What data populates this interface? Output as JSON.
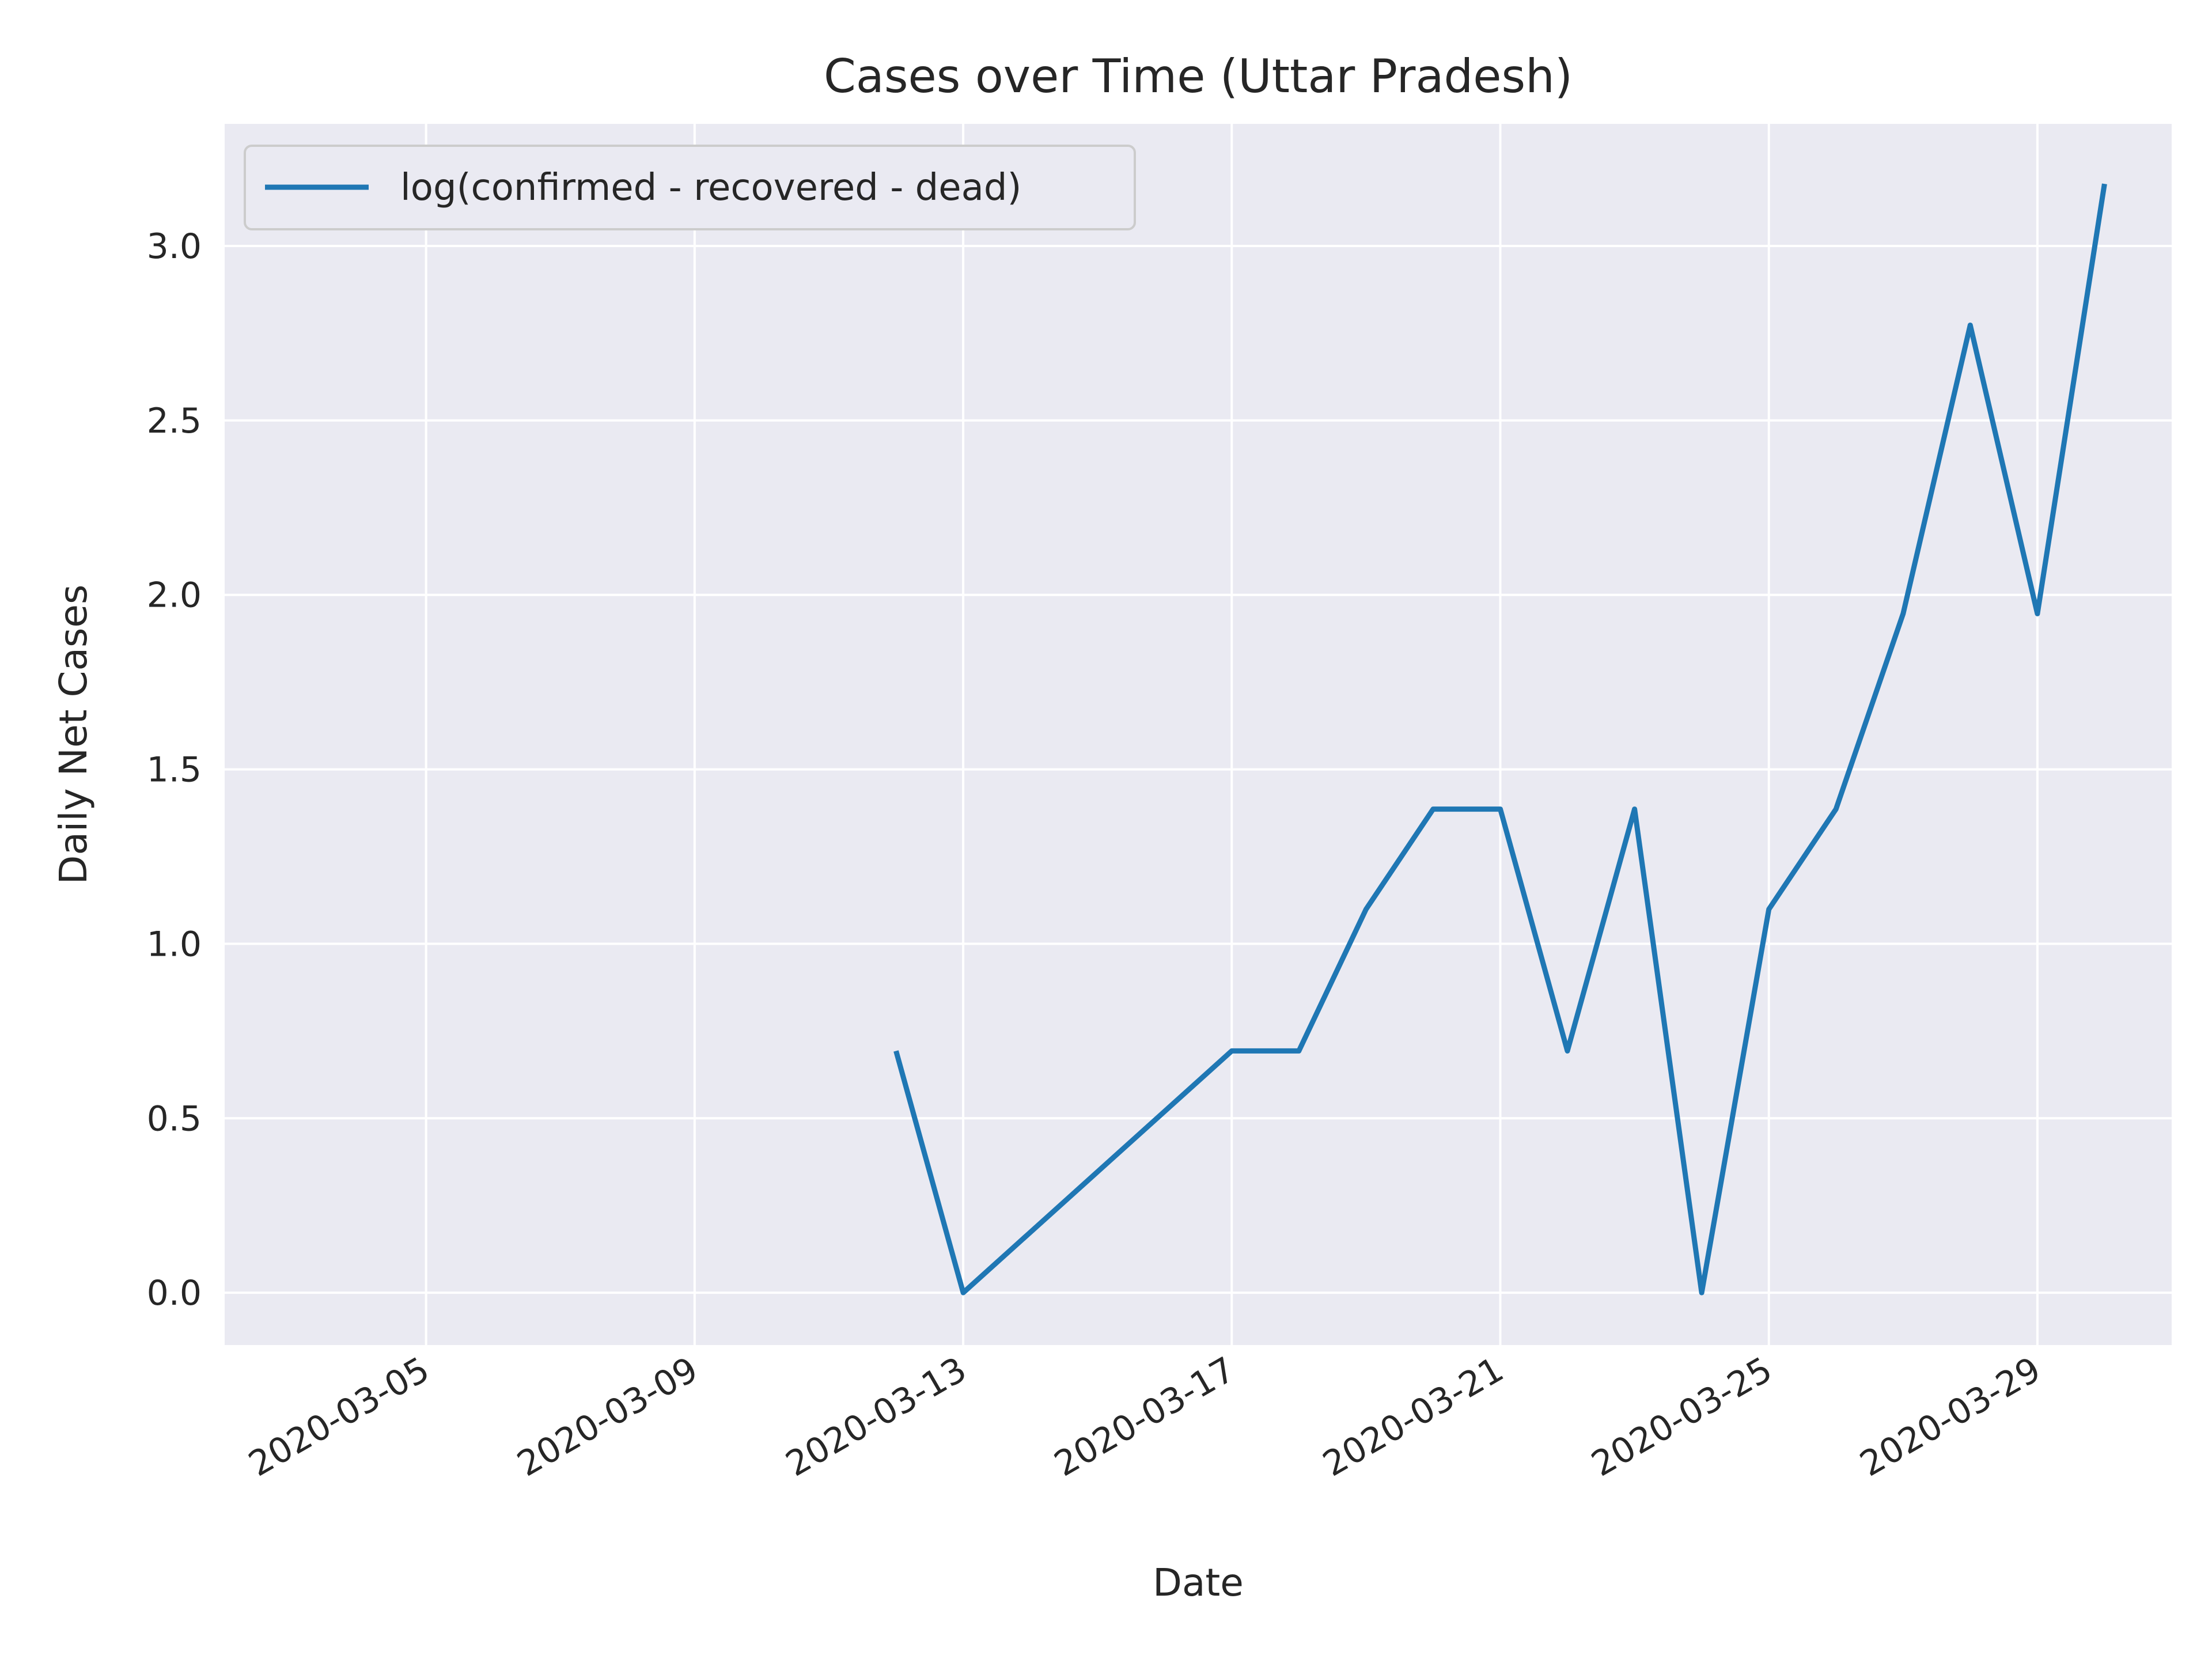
{
  "chart_data": {
    "type": "line",
    "title": "Cases over Time (Uttar Pradesh)",
    "xlabel": "Date",
    "ylabel": "Daily Net Cases",
    "x_tick_labels": [
      "2020-03-05",
      "2020-03-09",
      "2020-03-13",
      "2020-03-17",
      "2020-03-21",
      "2020-03-25",
      "2020-03-29"
    ],
    "y_tick_labels": [
      "0.0",
      "0.5",
      "1.0",
      "1.5",
      "2.0",
      "2.5",
      "3.0"
    ],
    "y_ticks": [
      0,
      0.5,
      1.0,
      1.5,
      2.0,
      2.5,
      3.0
    ],
    "xlim": [
      "2020-03-02",
      "2020-03-31"
    ],
    "ylim": [
      -0.15,
      3.35
    ],
    "grid": true,
    "legend_position": "top-left",
    "series": [
      {
        "name": "log(confirmed - recovered - dead)",
        "color": "#1f77b4",
        "points": [
          {
            "x": "2020-03-12",
            "y": 0.693
          },
          {
            "x": "2020-03-13",
            "y": 0.0
          },
          {
            "x": "2020-03-17",
            "y": 0.693
          },
          {
            "x": "2020-03-18",
            "y": 0.693
          },
          {
            "x": "2020-03-19",
            "y": 1.099
          },
          {
            "x": "2020-03-20",
            "y": 1.386
          },
          {
            "x": "2020-03-21",
            "y": 1.386
          },
          {
            "x": "2020-03-22",
            "y": 0.693
          },
          {
            "x": "2020-03-23",
            "y": 1.386
          },
          {
            "x": "2020-03-24",
            "y": 0.0
          },
          {
            "x": "2020-03-25",
            "y": 1.099
          },
          {
            "x": "2020-03-26",
            "y": 1.386
          },
          {
            "x": "2020-03-27",
            "y": 1.946
          },
          {
            "x": "2020-03-28",
            "y": 2.773
          },
          {
            "x": "2020-03-29",
            "y": 1.946
          },
          {
            "x": "2020-03-30",
            "y": 3.178
          }
        ]
      }
    ]
  },
  "colors": {
    "plot_background": "#eaeaf2",
    "grid": "#ffffff",
    "text": "#262626"
  }
}
